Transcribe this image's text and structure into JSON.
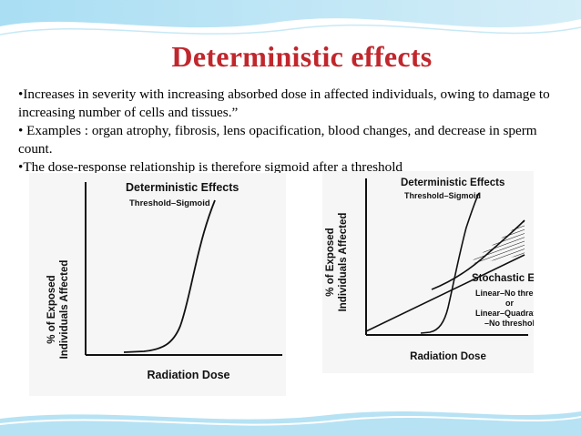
{
  "slide": {
    "title": "Deterministic effects",
    "bullets": [
      "•Increases in severity with increasing absorbed dose in affected individuals, owing to damage to increasing number of cells and tissues.”",
      "• Examples : organ atrophy, fibrosis, lens opacification, blood changes, and decrease in sperm count.",
      "•The dose-response relationship is therefore sigmoid after a threshold"
    ]
  },
  "left_plot": {
    "title": "Deterministic Effects",
    "subtitle": "Threshold–Sigmoid",
    "ylabel_line1": "% of Exposed",
    "ylabel_line2": "Individuals Affected",
    "xlabel": "Radiation Dose"
  },
  "right_plot": {
    "title": "Deterministic Effects",
    "subtitle": "Threshold–Sigmoid",
    "ylabel_line1": "% of Exposed",
    "ylabel_line2": "Individuals Affected",
    "xlabel": "Radiation Dose",
    "stochastic_title": "Stochastic Effects",
    "stochastic_line1": "Linear–No threshold",
    "stochastic_line2": "or",
    "stochastic_line3": "Linear–Quadratic",
    "stochastic_line4": "–No threshold"
  },
  "colors": {
    "title": "#c0272d",
    "band": "#8fd3ef"
  }
}
